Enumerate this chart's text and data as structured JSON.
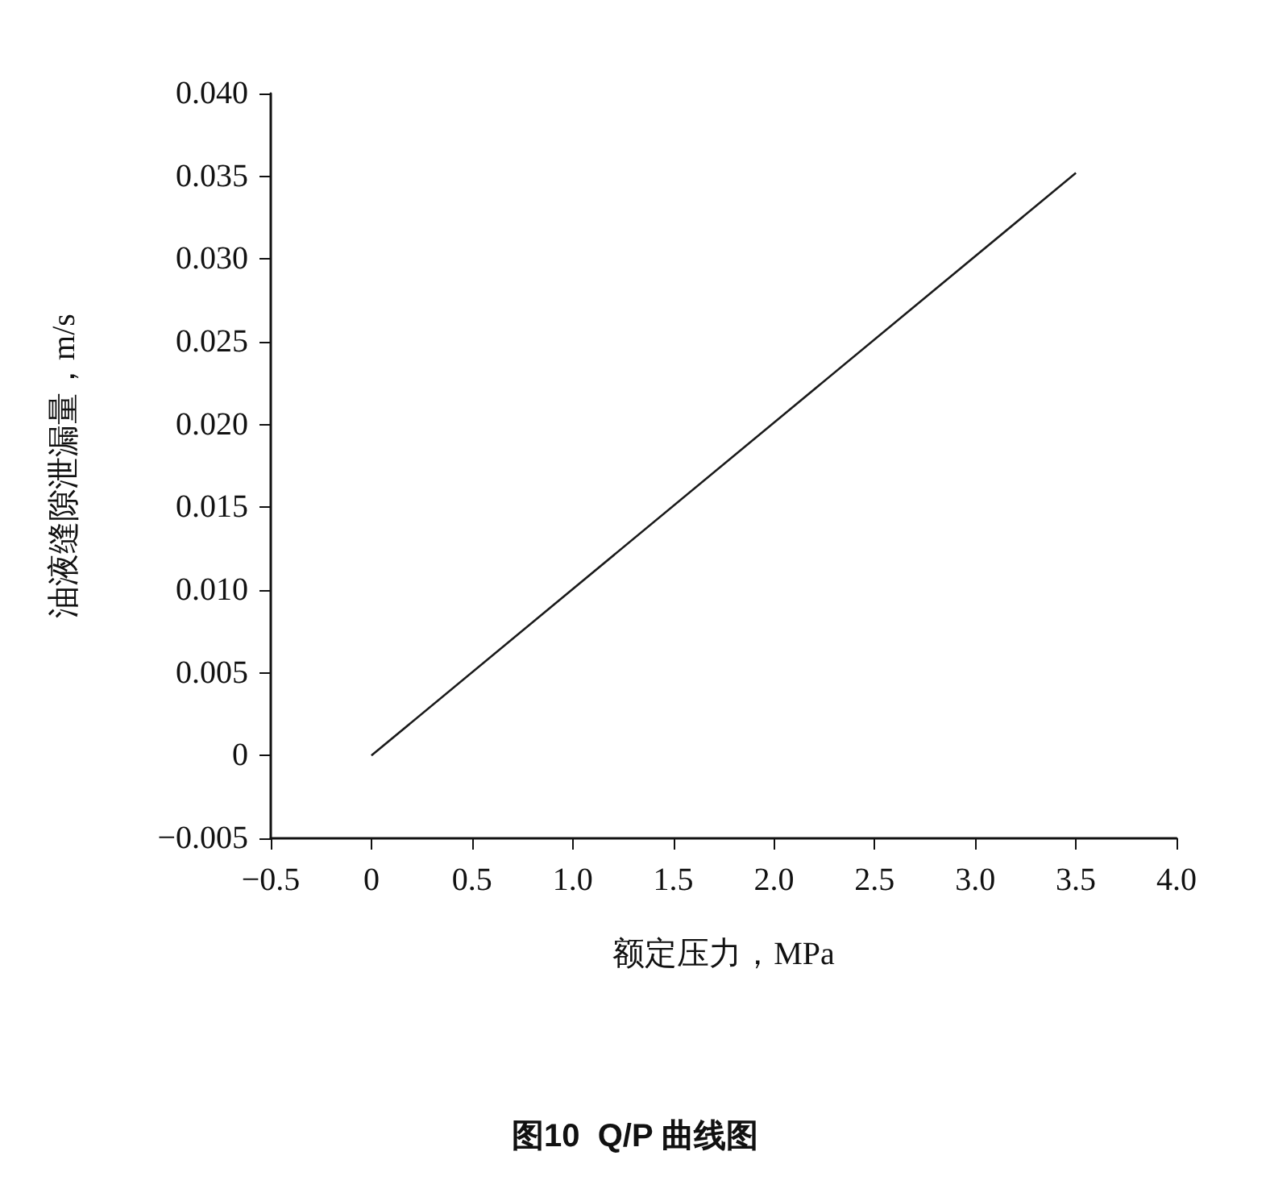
{
  "chart_data": {
    "type": "line",
    "title": "图10  Q/P 曲线图",
    "xlabel": "额定压力，MPa",
    "ylabel": "油液缝隙泄漏量，m/s",
    "series": [
      {
        "color": "#1a1a1a",
        "x": [
          0,
          3.5
        ],
        "values": [
          0,
          0.0352
        ]
      }
    ],
    "xlim": [
      -0.5,
      4.0
    ],
    "xticks": [
      {
        "value": -0.5,
        "label": "−0.5"
      },
      0,
      0.5,
      {
        "value": 1,
        "label": "1.0"
      },
      1.5,
      {
        "value": 2,
        "label": "2.0"
      },
      2.5,
      {
        "value": 3,
        "label": "3.0"
      },
      3.5,
      {
        "value": 4,
        "label": "4.0"
      }
    ],
    "ylim": [
      -0.005,
      0.04
    ],
    "yticks": [
      {
        "value": -0.005,
        "label": "−0.005"
      },
      0,
      0.005,
      {
        "value": 0.01,
        "label": "0.010"
      },
      0.015,
      {
        "value": 0.02,
        "label": "0.020"
      },
      0.025,
      {
        "value": 0.03,
        "label": "0.030"
      },
      0.035,
      {
        "value": 0.04,
        "label": "0.040"
      }
    ],
    "marker": "none",
    "line_style": "solid"
  }
}
